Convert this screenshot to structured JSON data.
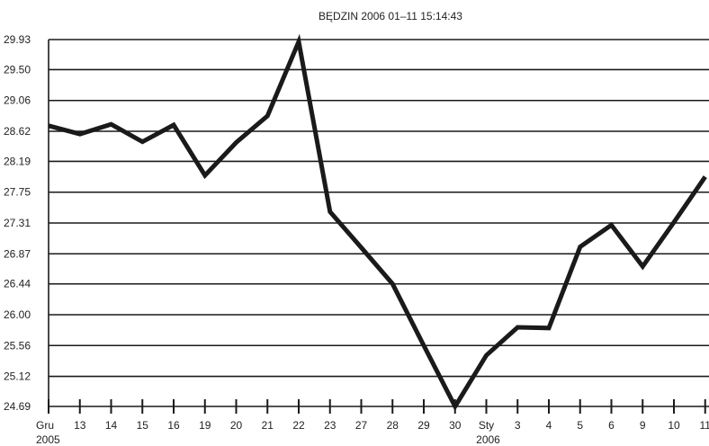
{
  "chart_data": {
    "type": "line",
    "title": "BĘDZIN 2006   01–11 15:14:43",
    "xlabel": "",
    "ylabel": "",
    "categories": [
      "Gru 2005",
      "13",
      "14",
      "15",
      "16",
      "19",
      "20",
      "21",
      "22",
      "23",
      "27",
      "28",
      "29",
      "30",
      "Sty 2006",
      "3",
      "4",
      "5",
      "6",
      "9",
      "10",
      "11"
    ],
    "x_tick_labels": [
      {
        "main": "Gru",
        "sub": "2005"
      },
      {
        "main": "13",
        "sub": ""
      },
      {
        "main": "14",
        "sub": ""
      },
      {
        "main": "15",
        "sub": ""
      },
      {
        "main": "16",
        "sub": ""
      },
      {
        "main": "19",
        "sub": ""
      },
      {
        "main": "20",
        "sub": ""
      },
      {
        "main": "21",
        "sub": ""
      },
      {
        "main": "22",
        "sub": ""
      },
      {
        "main": "23",
        "sub": ""
      },
      {
        "main": "27",
        "sub": ""
      },
      {
        "main": "28",
        "sub": ""
      },
      {
        "main": "29",
        "sub": ""
      },
      {
        "main": "30",
        "sub": ""
      },
      {
        "main": "Sty",
        "sub": "2006"
      },
      {
        "main": "3",
        "sub": ""
      },
      {
        "main": "4",
        "sub": ""
      },
      {
        "main": "5",
        "sub": ""
      },
      {
        "main": "6",
        "sub": ""
      },
      {
        "main": "9",
        "sub": ""
      },
      {
        "main": "10",
        "sub": ""
      },
      {
        "main": "11",
        "sub": ""
      }
    ],
    "x_points": [
      0,
      1,
      2,
      3,
      4,
      5,
      6,
      7,
      8,
      9,
      10,
      11,
      12,
      13,
      14,
      15,
      16,
      17,
      18,
      19,
      20,
      21
    ],
    "series": [
      {
        "values": [
          28.7,
          28.58,
          28.72,
          28.47,
          28.71,
          27.99,
          28.46,
          28.84,
          29.9,
          27.47,
          26.96,
          26.44,
          25.56,
          24.69,
          25.42,
          25.82,
          25.81,
          26.97,
          27.28,
          26.69,
          27.32,
          27.97
        ]
      }
    ],
    "y_ticks": [
      "29.93",
      "29.50",
      "29.06",
      "28.62",
      "28.19",
      "27.75",
      "27.31",
      "26.87",
      "26.44",
      "26.00",
      "25.56",
      "25.12",
      "24.69"
    ],
    "ylim": [
      24.69,
      29.93
    ],
    "grid": true,
    "legend": "none",
    "colors": {
      "line": "#1a1a1a",
      "grid": "#1a1a1a",
      "background": "#ffffff"
    }
  }
}
